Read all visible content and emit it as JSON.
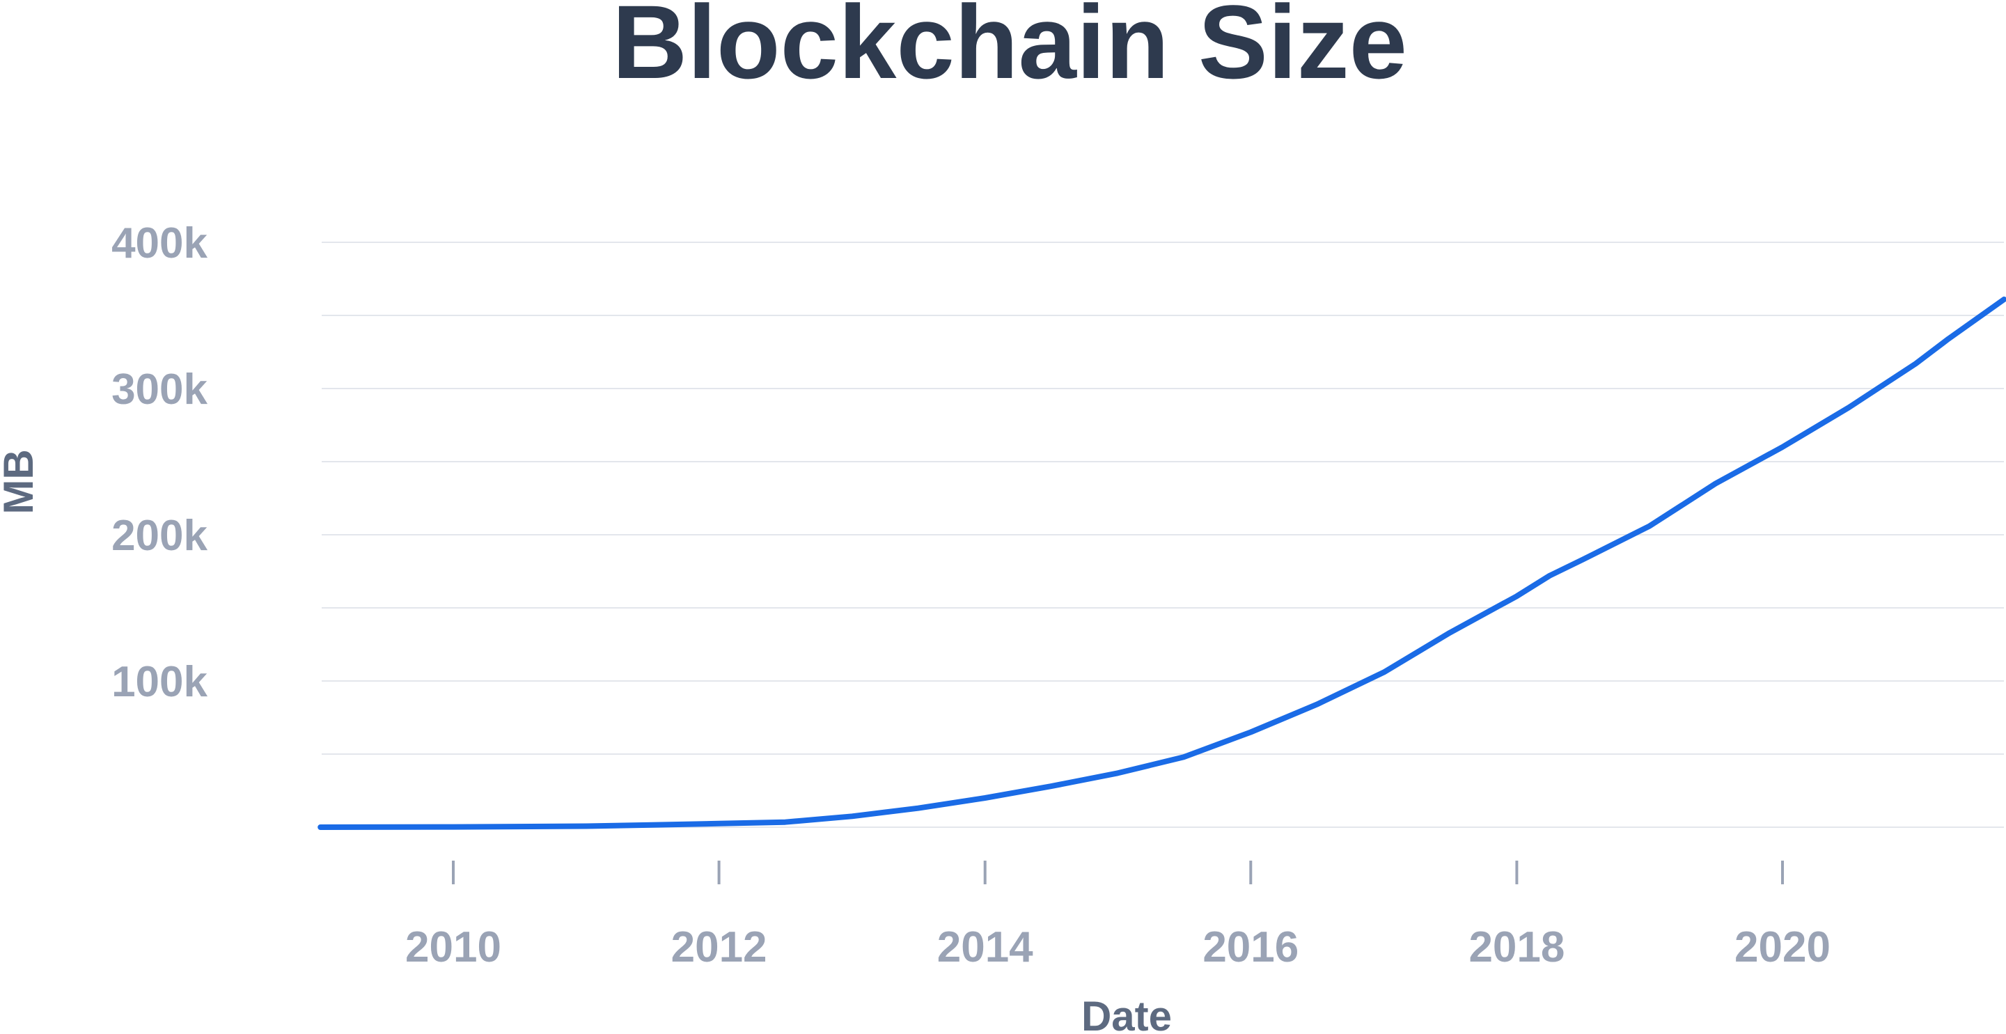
{
  "chart_data": {
    "type": "line",
    "title": "Blockchain Size",
    "xlabel": "Date",
    "ylabel": "MB",
    "ylim": [
      0,
      400000
    ],
    "y_ticks": [
      {
        "value": 100000,
        "label": "100k"
      },
      {
        "value": 200000,
        "label": "200k"
      },
      {
        "value": 300000,
        "label": "300k"
      },
      {
        "value": 400000,
        "label": "400k"
      }
    ],
    "x_ticks": [
      "2010",
      "2012",
      "2014",
      "2016",
      "2018",
      "2020"
    ],
    "x_range": [
      "2009-01-01",
      "2021-09-01"
    ],
    "grid": true,
    "colors": {
      "line": "#1a6be6",
      "title": "#2e3a4e",
      "ticks": "#9aa3b5",
      "axis_label": "#5d6a80",
      "grid": "#e3e6ec"
    },
    "series": [
      {
        "x": [
          "2009-01-01",
          "2010-01-01",
          "2011-01-01",
          "2011-07-01",
          "2012-01-01",
          "2012-07-01",
          "2013-01-01",
          "2013-07-01",
          "2014-01-01",
          "2014-07-01",
          "2015-01-01",
          "2015-07-01",
          "2016-01-01",
          "2016-07-01",
          "2017-01-01",
          "2017-07-01",
          "2018-01-01",
          "2018-04-01",
          "2018-07-01",
          "2019-01-01",
          "2019-07-01",
          "2020-01-01",
          "2020-07-01",
          "2021-01-01",
          "2021-04-01",
          "2021-09-01"
        ],
        "values": [
          0,
          200,
          700,
          1500,
          2500,
          3500,
          7500,
          13000,
          20000,
          28000,
          37000,
          48000,
          65000,
          84000,
          106000,
          133000,
          158000,
          172000,
          183000,
          206000,
          235000,
          260000,
          287000,
          317000,
          334000,
          361000
        ]
      }
    ]
  }
}
